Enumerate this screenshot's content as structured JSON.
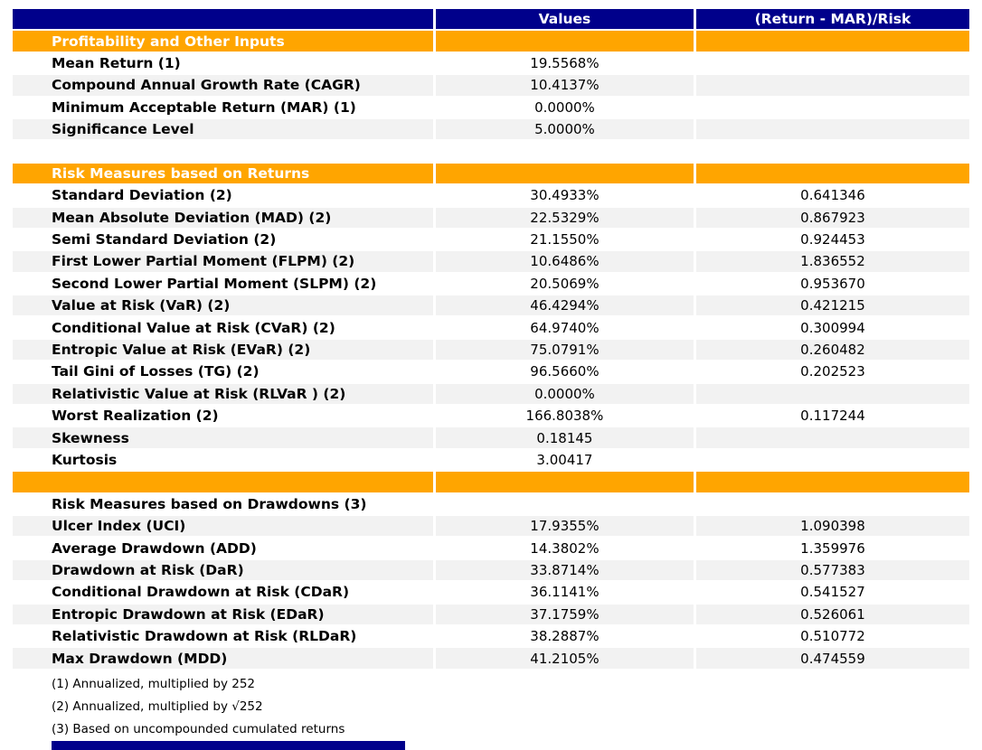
{
  "colors": {
    "header_bg": "#00008B",
    "header_text": "#FFFFFF",
    "section_bg": "#FFA500",
    "section_text": "#FFFFFF",
    "stripe_bg": "#F2F2F2",
    "row_bg": "#FFFFFF",
    "text": "#000000"
  },
  "chart_data": {
    "type": "table",
    "title": "",
    "columns": [
      "",
      "Values",
      "(Return - MAR)/Risk"
    ],
    "rows": [
      {
        "type": "section",
        "label": "Profitability and Other Inputs",
        "value": "",
        "ratio": ""
      },
      {
        "type": "data",
        "shade": false,
        "label": "Mean Return (1)",
        "value": "19.5568%",
        "ratio": ""
      },
      {
        "type": "data",
        "shade": true,
        "label": "Compound Annual Growth Rate (CAGR)",
        "value": "10.4137%",
        "ratio": ""
      },
      {
        "type": "data",
        "shade": false,
        "label": "Minimum Acceptable Return (MAR) (1)",
        "value": "0.0000%",
        "ratio": ""
      },
      {
        "type": "data",
        "shade": true,
        "label": "Significance Level",
        "value": "5.0000%",
        "ratio": ""
      },
      {
        "type": "gap",
        "label": "",
        "value": "",
        "ratio": ""
      },
      {
        "type": "section",
        "label": "Risk Measures based on Returns",
        "value": "",
        "ratio": ""
      },
      {
        "type": "data",
        "shade": false,
        "label": "Standard Deviation (2)",
        "value": "30.4933%",
        "ratio": "0.641346"
      },
      {
        "type": "data",
        "shade": true,
        "label": "Mean Absolute Deviation (MAD) (2)",
        "value": "22.5329%",
        "ratio": "0.867923"
      },
      {
        "type": "data",
        "shade": false,
        "label": "Semi Standard Deviation (2)",
        "value": "21.1550%",
        "ratio": "0.924453"
      },
      {
        "type": "data",
        "shade": true,
        "label": "First Lower Partial Moment (FLPM) (2)",
        "value": "10.6486%",
        "ratio": "1.836552"
      },
      {
        "type": "data",
        "shade": false,
        "label": "Second Lower Partial Moment (SLPM) (2)",
        "value": "20.5069%",
        "ratio": "0.953670"
      },
      {
        "type": "data",
        "shade": true,
        "label": "Value at Risk (VaR) (2)",
        "value": "46.4294%",
        "ratio": "0.421215"
      },
      {
        "type": "data",
        "shade": false,
        "label": "Conditional Value at Risk (CVaR) (2)",
        "value": "64.9740%",
        "ratio": "0.300994"
      },
      {
        "type": "data",
        "shade": true,
        "label": "Entropic Value at Risk (EVaR) (2)",
        "value": "75.0791%",
        "ratio": "0.260482"
      },
      {
        "type": "data",
        "shade": false,
        "label": "Tail Gini of Losses (TG) (2)",
        "value": "96.5660%",
        "ratio": "0.202523"
      },
      {
        "type": "data",
        "shade": true,
        "label": "Relativistic Value at Risk (RLVaR ) (2)",
        "value": "0.0000%",
        "ratio": ""
      },
      {
        "type": "data",
        "shade": false,
        "label": "Worst Realization (2)",
        "value": "166.8038%",
        "ratio": "0.117244"
      },
      {
        "type": "data",
        "shade": true,
        "label": "Skewness",
        "value": "0.18145",
        "ratio": ""
      },
      {
        "type": "data",
        "shade": false,
        "label": "Kurtosis",
        "value": "3.00417",
        "ratio": ""
      },
      {
        "type": "section",
        "label": "",
        "value": "",
        "ratio": ""
      },
      {
        "type": "data",
        "shade": false,
        "label": "Risk Measures based on Drawdowns (3)",
        "value": "",
        "ratio": ""
      },
      {
        "type": "data",
        "shade": true,
        "label": "Ulcer Index (UCI)",
        "value": "17.9355%",
        "ratio": "1.090398"
      },
      {
        "type": "data",
        "shade": false,
        "label": "Average Drawdown (ADD)",
        "value": "14.3802%",
        "ratio": "1.359976"
      },
      {
        "type": "data",
        "shade": true,
        "label": "Drawdown at Risk (DaR)",
        "value": "33.8714%",
        "ratio": "0.577383"
      },
      {
        "type": "data",
        "shade": false,
        "label": "Conditional Drawdown at Risk (CDaR)",
        "value": "36.1141%",
        "ratio": "0.541527"
      },
      {
        "type": "data",
        "shade": true,
        "label": "Entropic Drawdown at Risk (EDaR)",
        "value": "37.1759%",
        "ratio": "0.526061"
      },
      {
        "type": "data",
        "shade": false,
        "label": "Relativistic Drawdown at Risk (RLDaR)",
        "value": "38.2887%",
        "ratio": "0.510772"
      },
      {
        "type": "data",
        "shade": true,
        "label": "Max Drawdown (MDD)",
        "value": "41.2105%",
        "ratio": "0.474559"
      }
    ],
    "footnotes": [
      "(1) Annualized, multiplied by 252",
      "(2) Annualized, multiplied by √252",
      "(3) Based on uncompounded cumulated returns"
    ]
  }
}
